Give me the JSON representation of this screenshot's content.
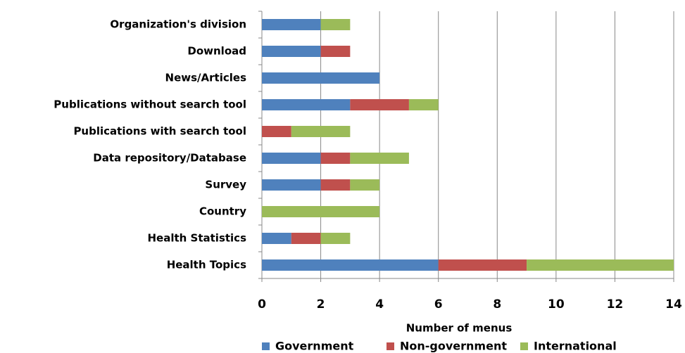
{
  "chart_data": {
    "type": "stacked-bar-horizontal",
    "x_label": "Number of  menus",
    "categories": [
      "Organization's division",
      "Download",
      "News/Articles",
      "Publications without search tool",
      "Publications with search tool",
      "Data repository/Database",
      "Survey",
      "Country",
      "Health Statistics",
      "Health Topics"
    ],
    "series": [
      {
        "name": "Government",
        "color": "#4f81bd",
        "values": [
          2,
          2,
          4,
          3,
          0,
          2,
          2,
          0,
          1,
          6
        ]
      },
      {
        "name": "Non-government",
        "color": "#c0504d",
        "values": [
          0,
          1,
          0,
          2,
          1,
          1,
          1,
          0,
          1,
          3
        ]
      },
      {
        "name": "International",
        "color": "#9bbb59",
        "values": [
          1,
          0,
          0,
          1,
          2,
          2,
          1,
          4,
          1,
          5
        ]
      }
    ],
    "xlim": [
      0,
      14
    ],
    "xticks": [
      0,
      2,
      4,
      6,
      8,
      10,
      12,
      14
    ],
    "grid": true,
    "legend": "bottom"
  }
}
